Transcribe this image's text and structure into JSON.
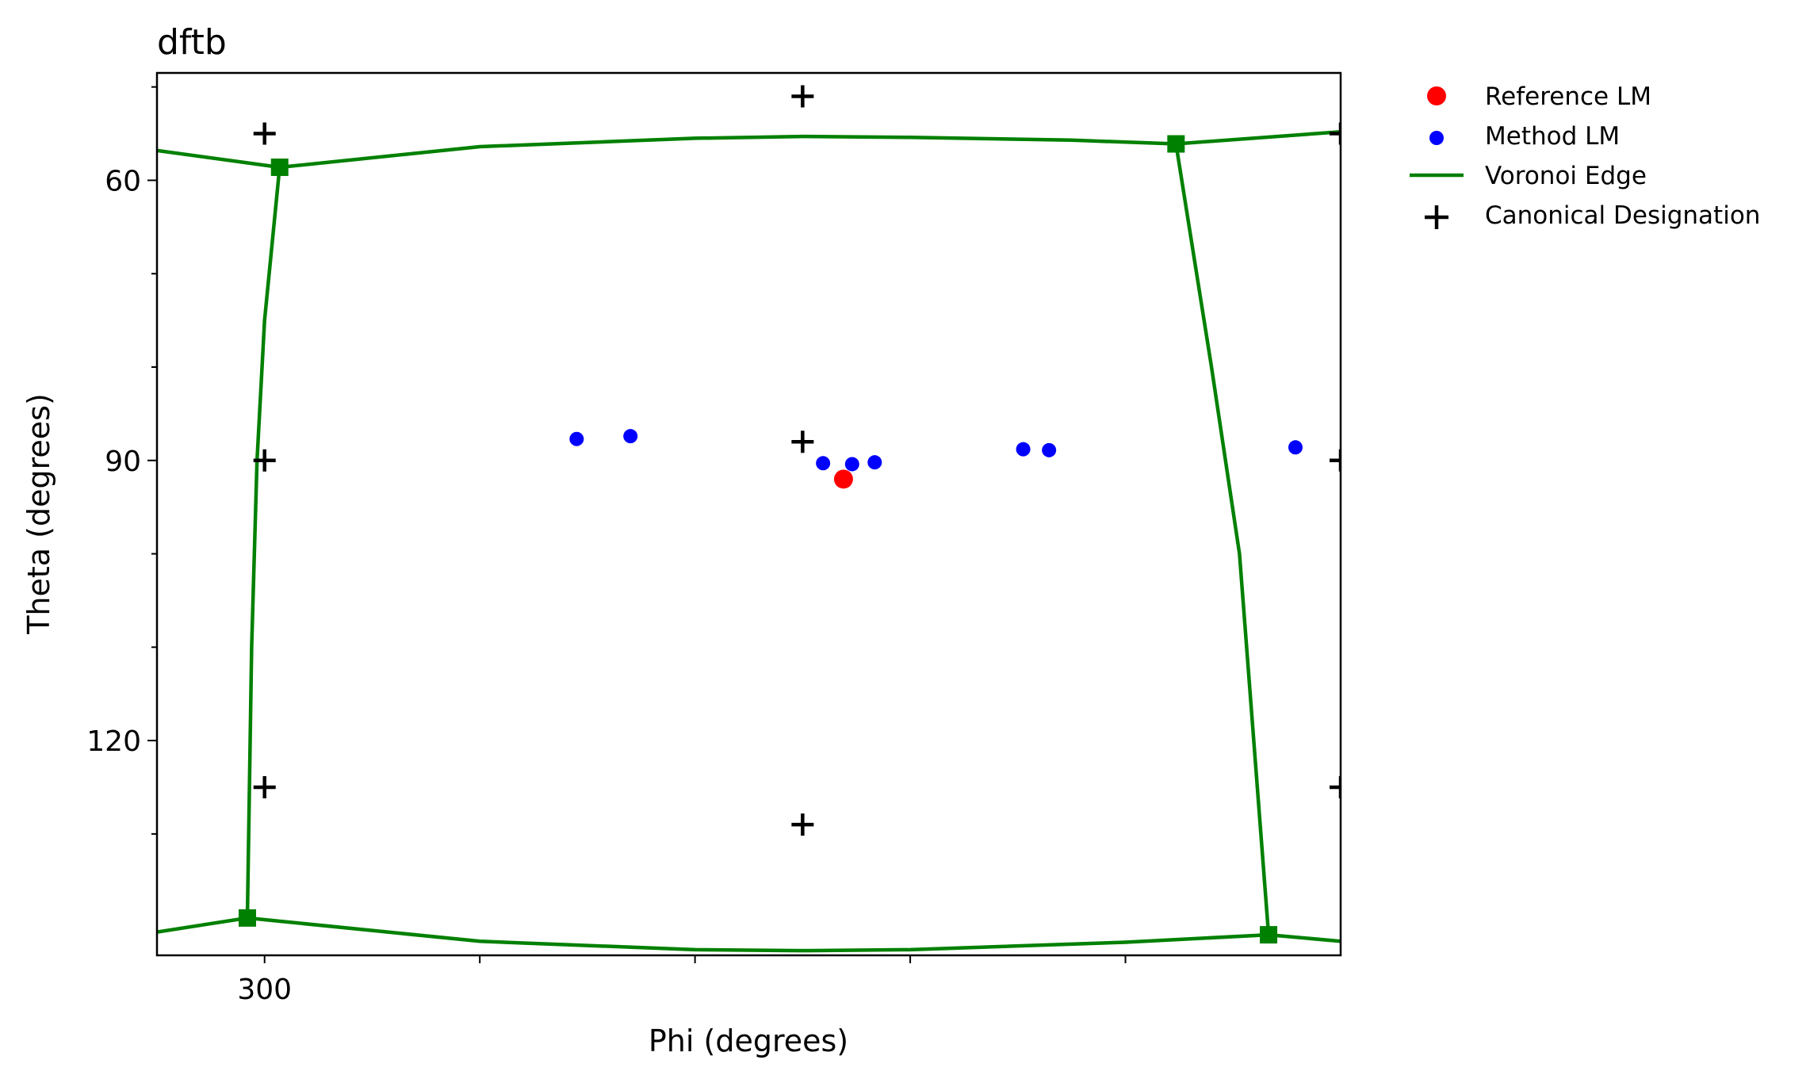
{
  "chart_data": {
    "type": "scatter",
    "title": "dftb",
    "xlabel": "Phi (degrees)",
    "ylabel": "Theta (degrees)",
    "xlim": [
      290,
      400
    ],
    "ylim": [
      48.5,
      143
    ],
    "y_inverted": true,
    "grid": false,
    "legend_position": "outside-right",
    "x_ticks": [
      300,
      320,
      340,
      360,
      380
    ],
    "x_tick_labels": [
      "300",
      "",
      "",
      "",
      ""
    ],
    "y_ticks": [
      50,
      60,
      70,
      80,
      90,
      100,
      110,
      120,
      130
    ],
    "y_tick_labels": [
      "",
      "60",
      "",
      "",
      "90",
      "",
      "",
      "120",
      ""
    ],
    "legend": [
      {
        "label": "Reference LM",
        "marker": "circle-large",
        "color": "#ff0000"
      },
      {
        "label": "Method LM",
        "marker": "circle",
        "color": "#0000ff"
      },
      {
        "label": "Voronoi Edge",
        "marker": "line",
        "color": "#008000"
      },
      {
        "label": "Canonical Designation",
        "marker": "plus",
        "color": "#000000"
      }
    ],
    "series": [
      {
        "name": "Reference LM",
        "color": "#ff0000",
        "points": [
          [
            353.8,
            92.0
          ]
        ]
      },
      {
        "name": "Method LM",
        "color": "#0000ff",
        "points": [
          [
            329.0,
            87.7
          ],
          [
            334.0,
            87.4
          ],
          [
            351.9,
            90.3
          ],
          [
            354.6,
            90.4
          ],
          [
            356.7,
            90.2
          ],
          [
            370.5,
            88.8
          ],
          [
            372.9,
            88.9
          ],
          [
            395.8,
            88.6
          ]
        ]
      },
      {
        "name": "Voronoi Edge",
        "color": "#008000",
        "vertices": [
          [
            301.4,
            58.6
          ],
          [
            384.7,
            56.1
          ],
          [
            298.4,
            139.0
          ],
          [
            393.3,
            140.8
          ]
        ],
        "edges": [
          [
            [
              290,
              56.8
            ],
            [
              301.4,
              58.6
            ]
          ],
          [
            [
              301.4,
              58.6
            ],
            [
              320,
              56.4
            ],
            [
              340,
              55.5
            ],
            [
              350,
              55.3
            ],
            [
              360,
              55.4
            ],
            [
              375,
              55.7
            ],
            [
              384.7,
              56.1
            ]
          ],
          [
            [
              384.7,
              56.1
            ],
            [
              400,
              54.8
            ]
          ],
          [
            [
              301.4,
              58.6
            ],
            [
              300.0,
              75
            ],
            [
              299.3,
              90
            ],
            [
              298.8,
              110
            ],
            [
              298.4,
              139.0
            ]
          ],
          [
            [
              384.7,
              56.1
            ],
            [
              388.0,
              80
            ],
            [
              390.6,
              100
            ],
            [
              393.3,
              140.8
            ]
          ],
          [
            [
              290,
              140.5
            ],
            [
              298.4,
              139.0
            ]
          ],
          [
            [
              298.4,
              139.0
            ],
            [
              320,
              141.5
            ],
            [
              340,
              142.4
            ],
            [
              350,
              142.5
            ],
            [
              360,
              142.4
            ],
            [
              380,
              141.6
            ],
            [
              393.3,
              140.8
            ]
          ],
          [
            [
              393.3,
              140.8
            ],
            [
              400,
              141.5
            ]
          ]
        ]
      },
      {
        "name": "Canonical Designation",
        "color": "#000000",
        "points": [
          [
            300,
            55
          ],
          [
            350,
            51
          ],
          [
            300,
            90
          ],
          [
            350,
            88
          ],
          [
            300,
            125
          ],
          [
            350,
            129
          ],
          [
            400,
            55
          ],
          [
            400,
            90
          ],
          [
            400,
            125
          ]
        ]
      }
    ]
  }
}
